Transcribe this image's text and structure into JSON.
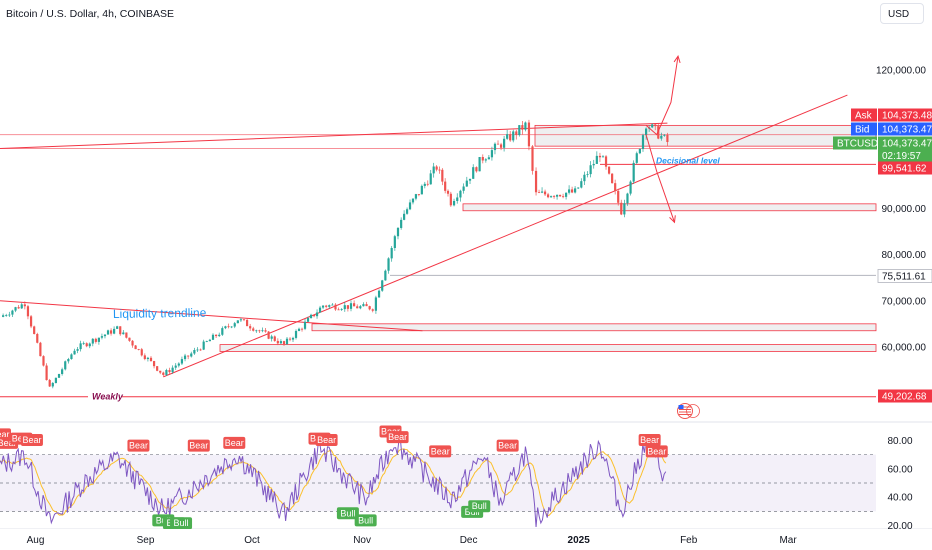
{
  "header": {
    "title": "Bitcoin / U.S. Dollar, 4h, COINBASE",
    "currency_button": "USD"
  },
  "colors": {
    "bull": "#26a69a",
    "bear": "#ef5350",
    "level_line": "#f23645",
    "rsi": "#7e57c2",
    "rsi_ma": "#fbc02d",
    "bid": "#2962ff",
    "green_tag": "#4caf50",
    "annotation_blue": "#2196f3",
    "weakly": "#880e4f"
  },
  "chart_data": [
    {
      "type": "candlestick",
      "title": "Bitcoin / U.S. Dollar, 4h, COINBASE",
      "x_ticks": [
        "Aug",
        "Sep",
        "Oct",
        "Nov",
        "Dec",
        "2025",
        "Feb",
        "Mar"
      ],
      "y_ticks": [
        60000,
        70000,
        80000,
        90000,
        120000
      ],
      "y_tick_labels": [
        "60,000.00",
        "70,000.00",
        "80,000.00",
        "90,000.00",
        "120,000.00"
      ],
      "ylim": [
        48000,
        128000
      ],
      "price_waypoints": [
        {
          "date": "2024-07-22",
          "price": 66500
        },
        {
          "date": "2024-07-29",
          "price": 69500
        },
        {
          "date": "2024-08-05",
          "price": 51000
        },
        {
          "date": "2024-08-12",
          "price": 59500
        },
        {
          "date": "2024-08-24",
          "price": 64000
        },
        {
          "date": "2024-09-06",
          "price": 54000
        },
        {
          "date": "2024-09-20",
          "price": 62000
        },
        {
          "date": "2024-09-27",
          "price": 66000
        },
        {
          "date": "2024-10-10",
          "price": 60500
        },
        {
          "date": "2024-10-21",
          "price": 69000
        },
        {
          "date": "2024-11-04",
          "price": 68500
        },
        {
          "date": "2024-11-12",
          "price": 88000
        },
        {
          "date": "2024-11-22",
          "price": 99000
        },
        {
          "date": "2024-11-26",
          "price": 91500
        },
        {
          "date": "2024-12-05",
          "price": 101000
        },
        {
          "date": "2024-12-17",
          "price": 108000
        },
        {
          "date": "2024-12-20",
          "price": 93000
        },
        {
          "date": "2024-12-31",
          "price": 93500
        },
        {
          "date": "2025-01-07",
          "price": 102000
        },
        {
          "date": "2025-01-13",
          "price": 89500
        },
        {
          "date": "2025-01-20",
          "price": 108500
        },
        {
          "date": "2025-01-26",
          "price": 104373.47
        }
      ],
      "last_price": 104373.47,
      "price_labels": [
        {
          "label": "Ask",
          "value": "104,373.48",
          "color": "#f23645"
        },
        {
          "label": "Bid",
          "value": "104,373.47",
          "color": "#2962ff"
        },
        {
          "label": "BTCUSD",
          "value": "104,373.47",
          "sub": "02:19:57",
          "color": "#4caf50"
        },
        {
          "label": "",
          "value": "99,541.62",
          "color": "#f23645"
        },
        {
          "label": "",
          "value": "75,511.61",
          "color": "#131722"
        },
        {
          "label": "",
          "value": "49,202.68",
          "color": "#f23645"
        }
      ],
      "annotations": [
        {
          "text": "Liquidity trendline"
        },
        {
          "text": "Decisional level",
          "price": 99541.62
        },
        {
          "text": "Weakly",
          "price": 49202.68
        }
      ],
      "horizontal_levels": [
        99541.62,
        75511.61,
        49202.68,
        106000,
        103000
      ],
      "zones": [
        {
          "from": 103500,
          "to": 108000
        },
        {
          "from": 89500,
          "to": 91000
        },
        {
          "from": 63500,
          "to": 65000
        },
        {
          "from": 59000,
          "to": 60500
        }
      ],
      "trendlines": [
        {
          "from": {
            "date": "2024-07-22",
            "price": 103000
          },
          "to": {
            "date": "2025-01-26",
            "price": 108500
          }
        },
        {
          "from": {
            "date": "2024-09-06",
            "price": 53500
          },
          "to": {
            "date": "2025-01-26",
            "price": 98500
          }
        },
        {
          "from": {
            "date": "2024-07-22",
            "price": 70000
          },
          "to": {
            "date": "2024-11-18",
            "price": 63500
          }
        }
      ],
      "projection_paths": [
        [
          {
            "date": "2025-01-20",
            "price": 108000
          },
          {
            "date": "2025-01-23",
            "price": 106000
          },
          {
            "date": "2025-01-27",
            "price": 113000
          },
          {
            "date": "2025-01-29",
            "price": 123000
          }
        ],
        [
          {
            "date": "2025-01-20",
            "price": 106000
          },
          {
            "date": "2025-01-23",
            "price": 98000
          },
          {
            "date": "2025-01-28",
            "price": 87000
          }
        ]
      ]
    },
    {
      "type": "line",
      "subtype": "rsi",
      "y_ticks": [
        20,
        40,
        60,
        80
      ],
      "y_tick_labels": [
        "20.00",
        "40.00",
        "60.00",
        "80.00"
      ],
      "ylim": [
        18,
        84
      ],
      "bands": [
        30,
        50,
        70
      ],
      "waypoints": [
        {
          "date": "2024-07-22",
          "value": 62
        },
        {
          "date": "2024-07-29",
          "value": 70
        },
        {
          "date": "2024-08-05",
          "value": 22
        },
        {
          "date": "2024-08-15",
          "value": 52
        },
        {
          "date": "2024-08-24",
          "value": 68
        },
        {
          "date": "2024-09-06",
          "value": 30
        },
        {
          "date": "2024-09-20",
          "value": 58
        },
        {
          "date": "2024-09-27",
          "value": 70
        },
        {
          "date": "2024-10-10",
          "value": 28
        },
        {
          "date": "2024-10-20",
          "value": 75
        },
        {
          "date": "2024-11-02",
          "value": 38
        },
        {
          "date": "2024-11-10",
          "value": 80
        },
        {
          "date": "2024-11-26",
          "value": 38
        },
        {
          "date": "2024-12-05",
          "value": 70
        },
        {
          "date": "2024-12-10",
          "value": 35
        },
        {
          "date": "2024-12-17",
          "value": 72
        },
        {
          "date": "2024-12-20",
          "value": 24
        },
        {
          "date": "2025-01-07",
          "value": 78
        },
        {
          "date": "2025-01-13",
          "value": 30
        },
        {
          "date": "2025-01-20",
          "value": 80
        },
        {
          "date": "2025-01-26",
          "value": 52
        }
      ],
      "signals": [
        {
          "label": "Bear",
          "date": "2024-07-22",
          "value": 78
        },
        {
          "label": "Bear",
          "date": "2024-07-24",
          "value": 72
        },
        {
          "label": "Bear",
          "date": "2024-07-28",
          "value": 75
        },
        {
          "label": "Bear",
          "date": "2024-07-31",
          "value": 74
        },
        {
          "label": "Bear",
          "date": "2024-08-30",
          "value": 70
        },
        {
          "label": "Bull",
          "date": "2024-09-06",
          "value": 30
        },
        {
          "label": "Bull",
          "date": "2024-09-09",
          "value": 28
        },
        {
          "label": "Bull",
          "date": "2024-09-11",
          "value": 28
        },
        {
          "label": "Bear",
          "date": "2024-09-16",
          "value": 70
        },
        {
          "label": "Bear",
          "date": "2024-09-26",
          "value": 72
        },
        {
          "label": "Bear",
          "date": "2024-10-20",
          "value": 75
        },
        {
          "label": "Bear",
          "date": "2024-10-22",
          "value": 74
        },
        {
          "label": "Bull",
          "date": "2024-10-28",
          "value": 35
        },
        {
          "label": "Bull",
          "date": "2024-11-02",
          "value": 30
        },
        {
          "label": "Bear",
          "date": "2024-11-09",
          "value": 80
        },
        {
          "label": "Bear",
          "date": "2024-11-11",
          "value": 76
        },
        {
          "label": "Bear",
          "date": "2024-11-23",
          "value": 66
        },
        {
          "label": "Bull",
          "date": "2024-12-02",
          "value": 36
        },
        {
          "label": "Bull",
          "date": "2024-12-04",
          "value": 40
        },
        {
          "label": "Bear",
          "date": "2024-12-12",
          "value": 70
        },
        {
          "label": "Bear",
          "date": "2025-01-21",
          "value": 74
        },
        {
          "label": "Bear",
          "date": "2025-01-23",
          "value": 66
        }
      ]
    }
  ]
}
